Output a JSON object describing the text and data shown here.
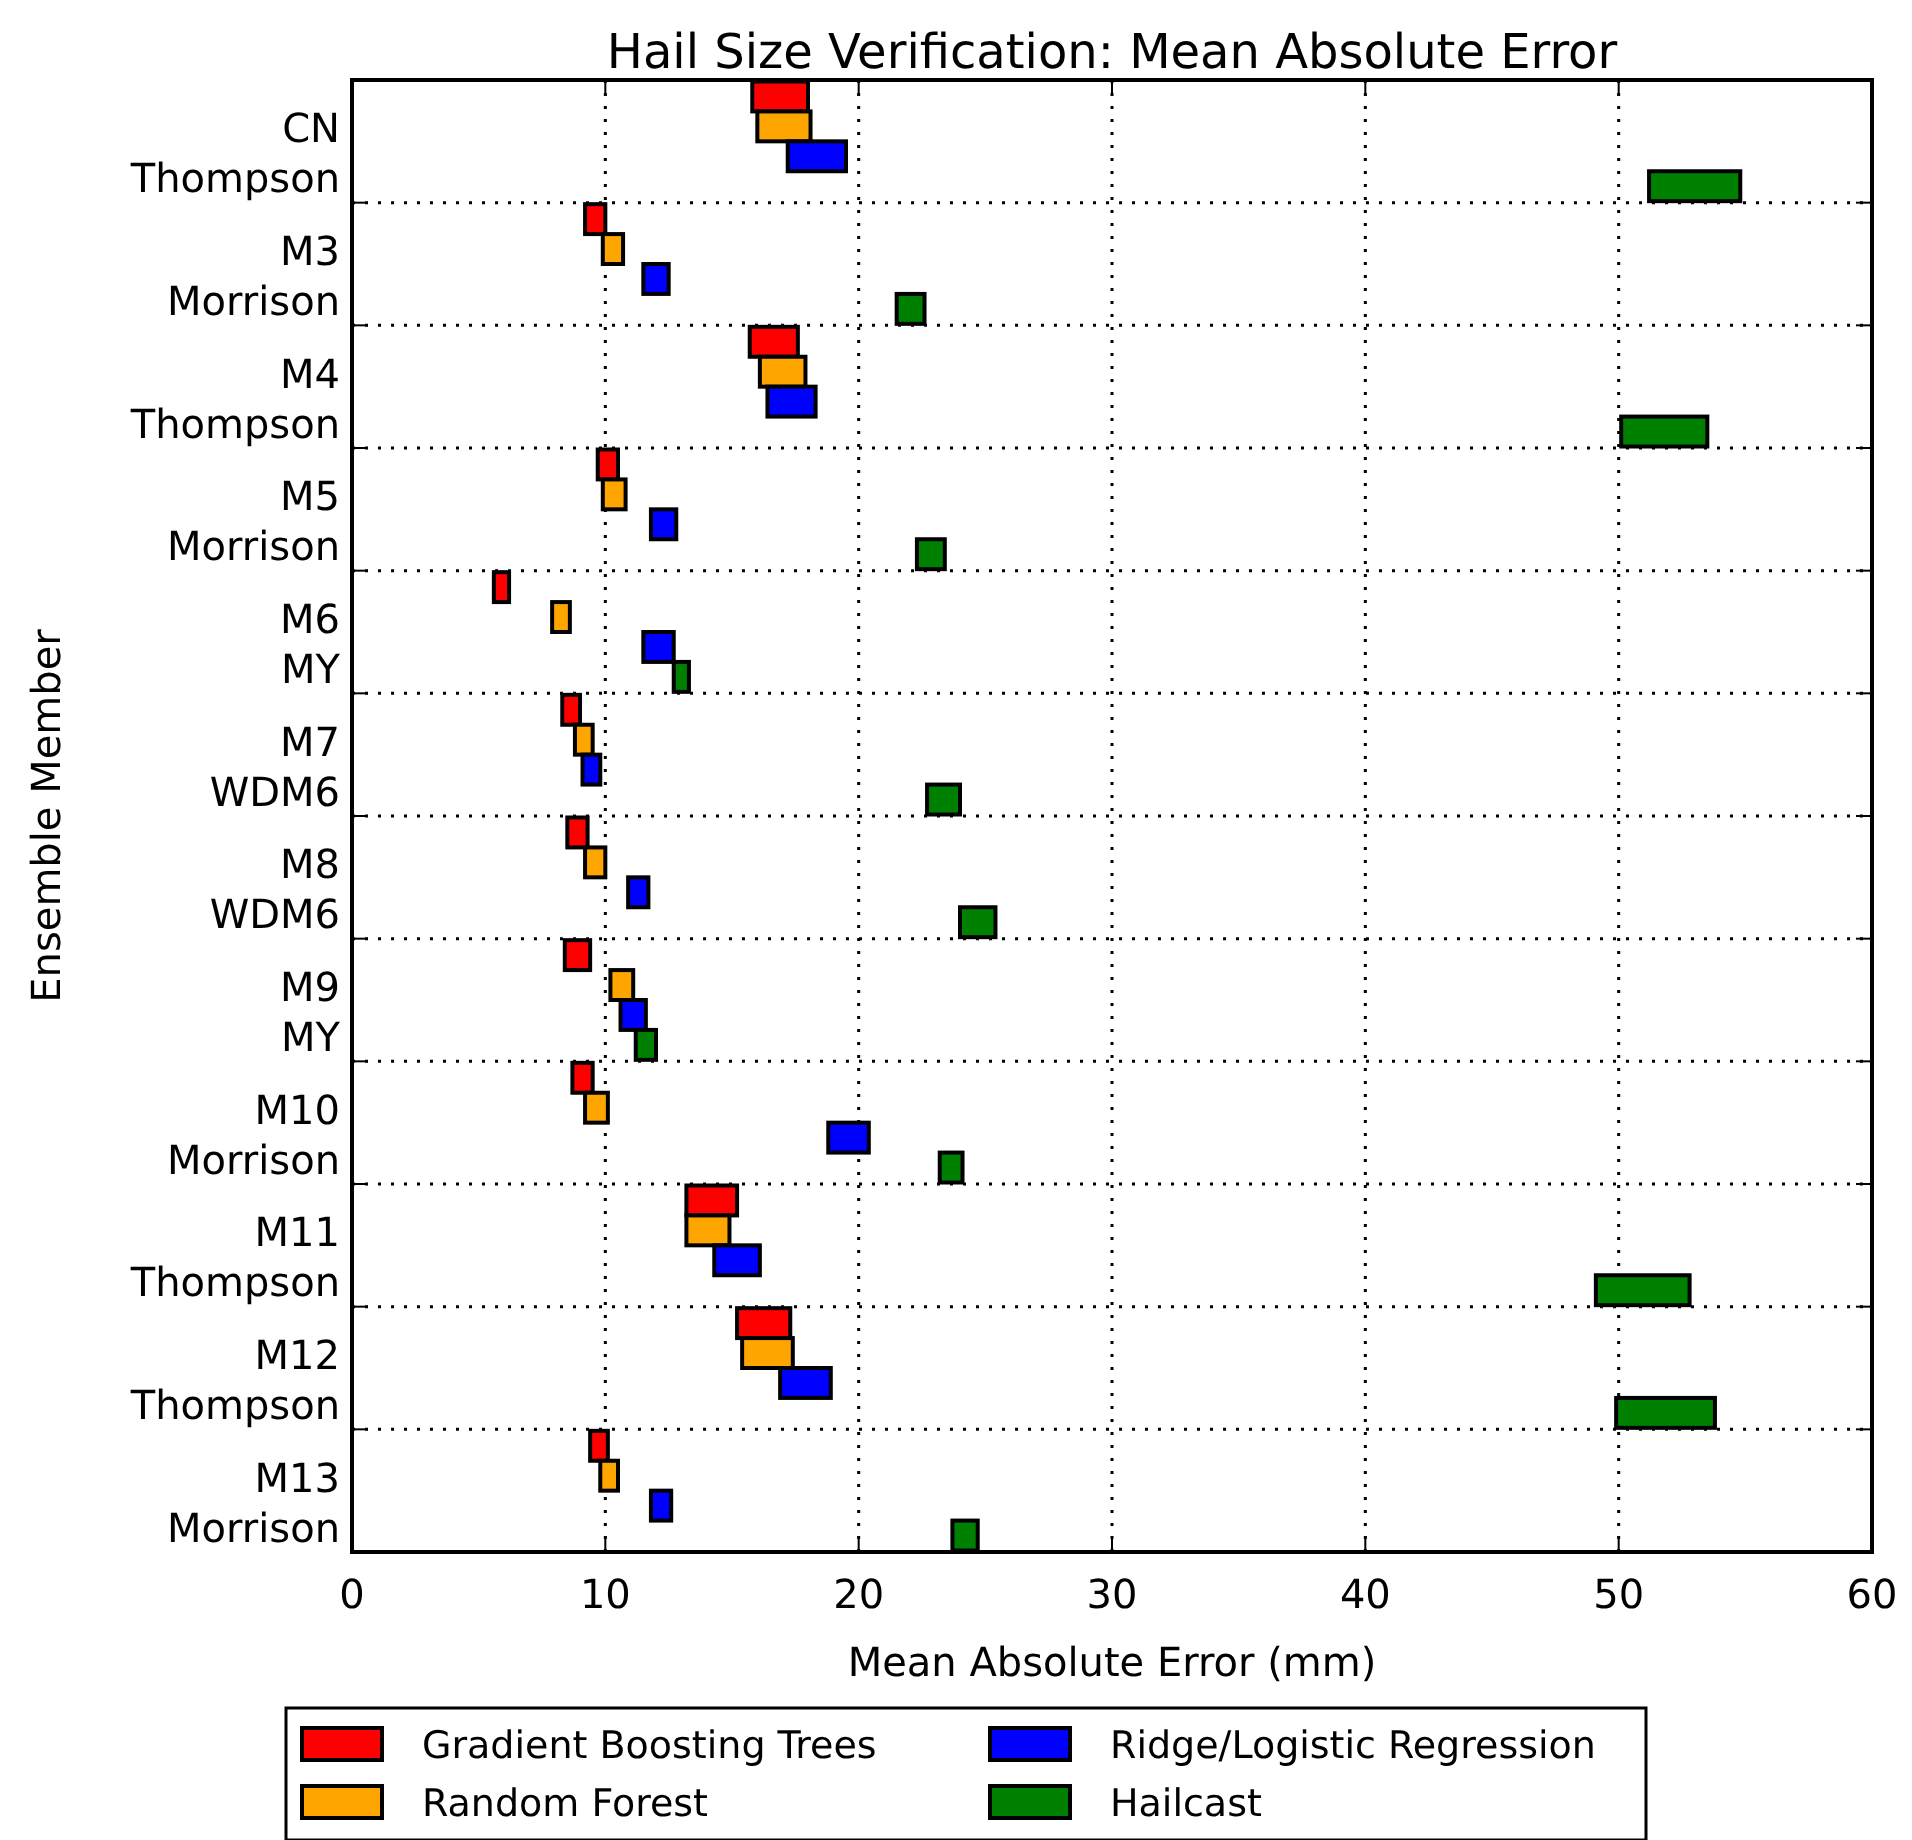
{
  "chart_data": {
    "type": "bar",
    "orientation": "horizontal",
    "title": "Hail Size Verification: Mean Absolute Error",
    "xlabel": "Mean Absolute Error (mm)",
    "ylabel": "Ensemble Member",
    "categories": [
      "CN\nThompson",
      "M3\nMorrison",
      "M4\nThompson",
      "M5\nMorrison",
      "M6\nMY",
      "M7\nWDM6",
      "M8\nWDM6",
      "M9\nMY",
      "M10\nMorrison",
      "M11\nThompson",
      "M12\nThompson",
      "M13\nMorrison"
    ],
    "series": [
      {
        "name": "Gradient Boosting Trees",
        "color": "#ff0000",
        "base": [
          15.8,
          9.2,
          15.7,
          9.7,
          5.6,
          8.3,
          8.5,
          8.4,
          8.7,
          13.2,
          15.2,
          9.4
        ],
        "values": [
          2.2,
          0.8,
          1.9,
          0.8,
          0.6,
          0.7,
          0.8,
          1.0,
          0.8,
          2.0,
          2.1,
          0.7
        ]
      },
      {
        "name": "Random Forest",
        "color": "#ffa500",
        "base": [
          16.0,
          9.9,
          16.1,
          9.9,
          7.9,
          8.8,
          9.2,
          10.2,
          9.2,
          13.2,
          15.4,
          9.8
        ],
        "values": [
          2.1,
          0.8,
          1.8,
          0.9,
          0.7,
          0.7,
          0.8,
          0.9,
          0.9,
          1.7,
          2.0,
          0.7
        ]
      },
      {
        "name": "Ridge/Logistic Regression",
        "color": "#0000ff",
        "base": [
          17.2,
          11.5,
          16.4,
          11.8,
          11.5,
          9.1,
          10.9,
          10.6,
          18.8,
          14.3,
          16.9,
          11.8
        ],
        "values": [
          2.3,
          1.0,
          1.9,
          1.0,
          1.2,
          0.7,
          0.8,
          1.0,
          1.6,
          1.8,
          2.0,
          0.8
        ]
      },
      {
        "name": "Hailcast",
        "color": "#008000",
        "base": [
          51.2,
          21.5,
          50.1,
          22.3,
          12.7,
          22.7,
          24.0,
          11.2,
          23.2,
          49.1,
          49.9,
          23.7
        ],
        "values": [
          3.6,
          1.1,
          3.4,
          1.1,
          0.6,
          1.3,
          1.4,
          0.8,
          0.9,
          3.7,
          3.9,
          1.0
        ]
      }
    ],
    "xlim": [
      0,
      60
    ],
    "xticks": [
      0,
      10,
      20,
      30,
      40,
      50,
      60
    ],
    "grid": true,
    "legend": "bottom"
  }
}
